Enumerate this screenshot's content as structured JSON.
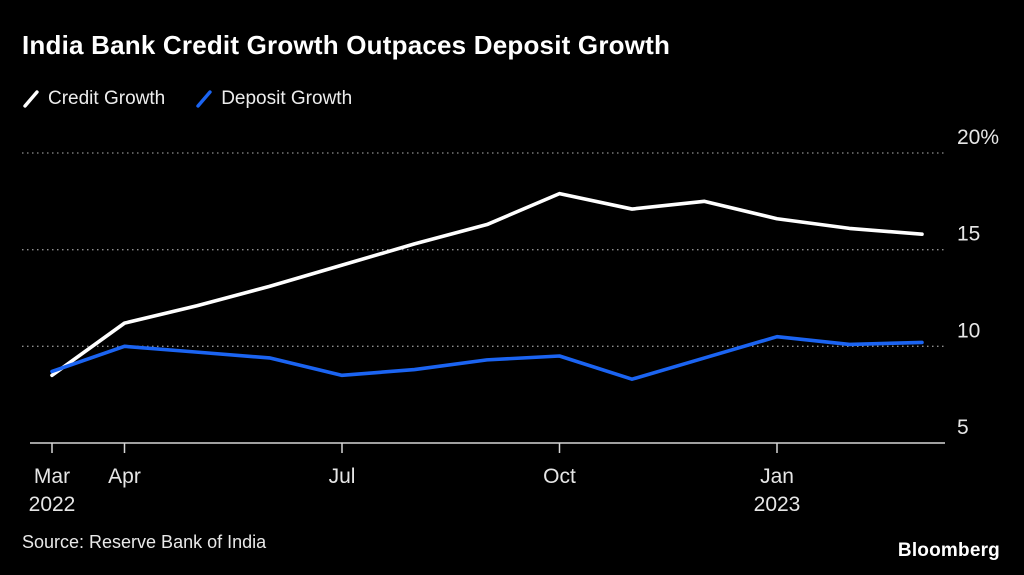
{
  "title": "India Bank Credit Growth Outpaces Deposit Growth",
  "legend": [
    {
      "label": "Credit Growth",
      "color": "#ffffff"
    },
    {
      "label": "Deposit Growth",
      "color": "#1b64f2"
    }
  ],
  "source": "Source: Reserve Bank of India",
  "brand": "Bloomberg",
  "colors": {
    "background": "#000000",
    "credit_line": "#ffffff",
    "deposit_line": "#1b64f2",
    "gridline": "#8f8f8f",
    "axis": "#d6d6d6",
    "label_text": "#e6e6e6"
  },
  "chart_data": {
    "type": "line",
    "x": [
      "Mar 2022",
      "Apr 2022",
      "May 2022",
      "Jun 2022",
      "Jul 2022",
      "Aug 2022",
      "Sep 2022",
      "Oct 2022",
      "Nov 2022",
      "Dec 2022",
      "Jan 2023",
      "Feb 2023",
      "Mar 2023"
    ],
    "series": [
      {
        "name": "Credit Growth",
        "color": "#ffffff",
        "values": [
          8.5,
          11.2,
          12.1,
          13.1,
          14.2,
          15.3,
          16.3,
          17.9,
          17.1,
          17.5,
          16.6,
          16.1,
          15.8
        ]
      },
      {
        "name": "Deposit Growth",
        "color": "#1b64f2",
        "values": [
          8.7,
          10.0,
          9.7,
          9.4,
          8.5,
          8.8,
          9.3,
          9.5,
          8.3,
          9.4,
          10.5,
          10.1,
          10.2
        ]
      }
    ],
    "title": "India Bank Credit Growth Outpaces Deposit Growth",
    "xlabel": "",
    "ylabel": "",
    "ylim": [
      5,
      20
    ],
    "yticks": [
      {
        "value": 20,
        "label": "20%"
      },
      {
        "value": 15,
        "label": "15"
      },
      {
        "value": 10,
        "label": "10"
      },
      {
        "value": 5,
        "label": "5"
      }
    ],
    "xticks": [
      {
        "index": 0,
        "label": "Mar",
        "sub": "2022"
      },
      {
        "index": 1,
        "label": "Apr",
        "sub": ""
      },
      {
        "index": 4,
        "label": "Jul",
        "sub": ""
      },
      {
        "index": 7,
        "label": "Oct",
        "sub": ""
      },
      {
        "index": 10,
        "label": "Jan",
        "sub": "2023"
      }
    ],
    "grid": "horizontal-dotted",
    "legend_position": "top-left"
  }
}
